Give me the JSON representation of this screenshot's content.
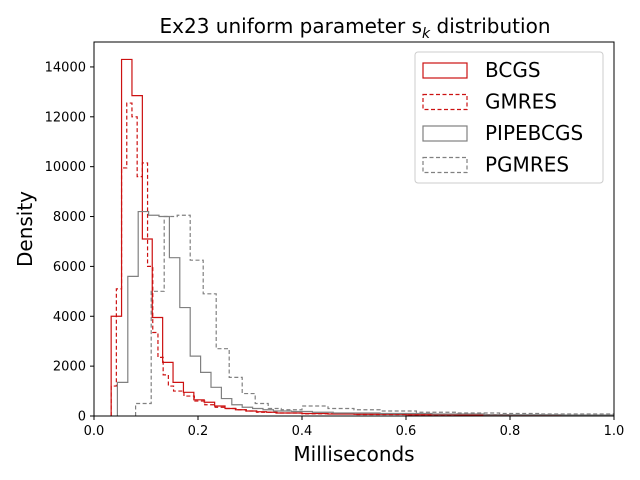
{
  "chart_data": {
    "type": "histogram-step",
    "title": "Ex23 uniform parameter s",
    "title_subscript": "k",
    "title_suffix": " distribution",
    "xlabel": "Milliseconds",
    "ylabel": "Density",
    "xlim": [
      0.0,
      1.0
    ],
    "ylim": [
      0,
      15000
    ],
    "xticks": [
      0.0,
      0.2,
      0.4,
      0.6,
      0.8,
      1.0
    ],
    "xtick_labels": [
      "0.0",
      "0.2",
      "0.4",
      "0.6",
      "0.8",
      "1.0"
    ],
    "yticks": [
      0,
      2000,
      4000,
      6000,
      8000,
      10000,
      12000,
      14000
    ],
    "ytick_labels": [
      "0",
      "2000",
      "4000",
      "6000",
      "8000",
      "10000",
      "12000",
      "14000"
    ],
    "legend_position": "top-right",
    "series": [
      {
        "name": "BCGS",
        "color": "#cc1111",
        "dash": false,
        "bins": [
          0.033,
          0.053,
          0.073,
          0.093,
          0.112,
          0.132,
          0.152,
          0.172,
          0.192,
          0.212,
          0.232,
          0.252,
          0.272,
          0.292,
          0.312,
          0.332,
          0.352,
          0.4,
          0.45,
          0.5,
          0.6,
          0.7,
          0.8,
          1.0
        ],
        "values": [
          4000,
          14300,
          12850,
          7100,
          3950,
          2150,
          1350,
          950,
          650,
          550,
          400,
          300,
          250,
          200,
          170,
          150,
          120,
          100,
          80,
          70,
          50,
          40,
          30
        ]
      },
      {
        "name": "GMRES",
        "color": "#cc1111",
        "dash": true,
        "bins": [
          0.033,
          0.043,
          0.053,
          0.063,
          0.073,
          0.083,
          0.093,
          0.103,
          0.113,
          0.123,
          0.133,
          0.143,
          0.153,
          0.173,
          0.193,
          0.213,
          0.233,
          0.253,
          0.273,
          0.293,
          0.313,
          0.35,
          0.4,
          0.5,
          0.6,
          0.8,
          1.0
        ],
        "values": [
          1200,
          5100,
          9950,
          12550,
          12000,
          9600,
          10150,
          6000,
          3350,
          2350,
          1650,
          1200,
          1000,
          800,
          600,
          450,
          350,
          300,
          250,
          200,
          150,
          120,
          90,
          60,
          50,
          30
        ]
      },
      {
        "name": "PIPEBCGS",
        "color": "#808080",
        "dash": false,
        "bins": [
          0.045,
          0.065,
          0.085,
          0.105,
          0.125,
          0.145,
          0.165,
          0.185,
          0.205,
          0.225,
          0.245,
          0.265,
          0.285,
          0.305,
          0.325,
          0.345,
          0.38,
          0.42,
          0.46,
          0.55,
          0.65,
          0.75,
          0.9,
          1.0
        ],
        "values": [
          1350,
          5600,
          8200,
          8050,
          8000,
          6350,
          4350,
          2400,
          1750,
          1150,
          700,
          450,
          350,
          300,
          250,
          200,
          180,
          150,
          120,
          100,
          80,
          50,
          40
        ]
      },
      {
        "name": "PGMRES",
        "color": "#808080",
        "dash": true,
        "bins": [
          0.08,
          0.11,
          0.135,
          0.16,
          0.185,
          0.21,
          0.235,
          0.26,
          0.285,
          0.31,
          0.335,
          0.36,
          0.4,
          0.45,
          0.5,
          0.55,
          0.62,
          0.7,
          0.78,
          0.86,
          1.0
        ],
        "values": [
          500,
          5000,
          8000,
          8050,
          6250,
          4900,
          2700,
          1550,
          900,
          500,
          300,
          250,
          400,
          300,
          250,
          200,
          150,
          120,
          100,
          80
        ]
      }
    ]
  }
}
